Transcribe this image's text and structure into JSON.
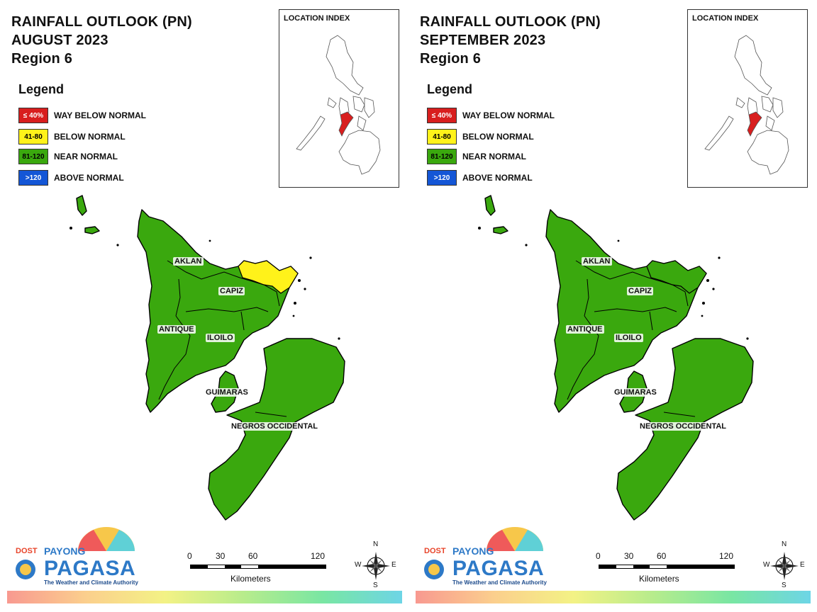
{
  "panels": [
    {
      "title_lines": [
        "RAINFALL OUTLOOK (PN)",
        "AUGUST 2023",
        "Region 6"
      ],
      "legend_title": "Legend",
      "legend": [
        {
          "swatch_text": "≤ 40%",
          "label": "WAY BELOW NORMAL",
          "color": "#d81e1e",
          "text_color": "#ffffff"
        },
        {
          "swatch_text": "41-80",
          "label": "BELOW NORMAL",
          "color": "#fff21a",
          "text_color": "#000000"
        },
        {
          "swatch_text": "81-120",
          "label": "NEAR NORMAL",
          "color": "#3aa80e",
          "text_color": "#000000"
        },
        {
          "swatch_text": ">120",
          "label": "ABOVE NORMAL",
          "color": "#1456d6",
          "text_color": "#ffffff"
        }
      ],
      "location_index_title": "LOCATION INDEX",
      "provinces": {
        "aklan": "AKLAN",
        "capiz": "CAPIZ",
        "antique": "ANTIQUE",
        "iloilo": "ILOILO",
        "guimaras": "GUIMARAS",
        "negros": "NEGROS OCCIDENTAL"
      },
      "northeast_capiz_outlook": "BELOW NORMAL",
      "scale_ticks": [
        "0",
        "30",
        "60",
        "120"
      ],
      "scale_unit": "Kilometers",
      "compass": {
        "n": "N",
        "s": "S",
        "e": "E",
        "w": "W"
      },
      "logo": {
        "dost": "DOST",
        "payong": "PAYONG",
        "pagasa": "PAGASA",
        "tagline": "The Weather and Climate Authority"
      }
    },
    {
      "title_lines": [
        "RAINFALL OUTLOOK (PN)",
        "SEPTEMBER 2023",
        "Region 6"
      ],
      "legend_title": "Legend",
      "legend": [
        {
          "swatch_text": "≤ 40%",
          "label": "WAY BELOW NORMAL",
          "color": "#d81e1e",
          "text_color": "#ffffff"
        },
        {
          "swatch_text": "41-80",
          "label": "BELOW NORMAL",
          "color": "#fff21a",
          "text_color": "#000000"
        },
        {
          "swatch_text": "81-120",
          "label": "NEAR NORMAL",
          "color": "#3aa80e",
          "text_color": "#000000"
        },
        {
          "swatch_text": ">120",
          "label": "ABOVE NORMAL",
          "color": "#1456d6",
          "text_color": "#ffffff"
        }
      ],
      "location_index_title": "LOCATION INDEX",
      "provinces": {
        "aklan": "AKLAN",
        "capiz": "CAPIZ",
        "antique": "ANTIQUE",
        "iloilo": "ILOILO",
        "guimaras": "GUIMARAS",
        "negros": "NEGROS OCCIDENTAL"
      },
      "northeast_capiz_outlook": "NEAR NORMAL",
      "scale_ticks": [
        "0",
        "30",
        "60",
        "120"
      ],
      "scale_unit": "Kilometers",
      "compass": {
        "n": "N",
        "s": "S",
        "e": "E",
        "w": "W"
      },
      "logo": {
        "dost": "DOST",
        "payong": "PAYONG",
        "pagasa": "PAGASA",
        "tagline": "The Weather and Climate Authority"
      }
    }
  ]
}
